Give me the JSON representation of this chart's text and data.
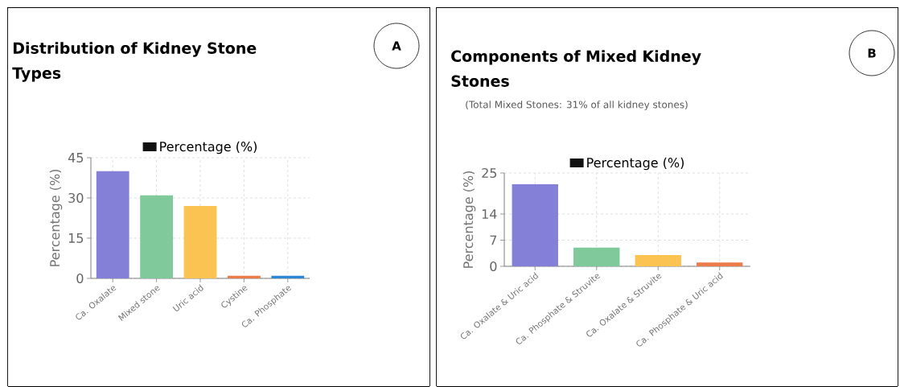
{
  "chart_data": [
    {
      "type": "bar",
      "title": "Distribution of Kidney Stone Types",
      "ylabel": "Percentage (%)",
      "categories": [
        "Ca. Oxalate",
        "Mixed stone",
        "Uric acid",
        "Cystine",
        "Ca. Phosphate"
      ],
      "series": [
        {
          "name": "Percentage (%)",
          "color": "#111111",
          "colors": [
            "#8480d8",
            "#7fc99a",
            "#fbc352",
            "#ec7d4a",
            "#2e86d6"
          ],
          "values": [
            40,
            31,
            27,
            1,
            1
          ]
        }
      ],
      "ylim": [
        0,
        45
      ],
      "yticks": [
        0,
        15,
        30,
        45
      ],
      "grid": true,
      "legend": "top",
      "annotations": [
        "A"
      ]
    },
    {
      "type": "bar",
      "title": "Components of Mixed Kidney Stones",
      "subtitle": "(Total Mixed Stones: 31% of all kidney stones)",
      "ylabel": "Percentage (%)",
      "categories": [
        "Ca. Oxalate & Uric acid",
        "Ca. Phosphate & Struvite",
        "Ca. Oxalate & Struvite",
        "Ca. Phosphate & Uric acid"
      ],
      "series": [
        {
          "name": "Percentage (%)",
          "color": "#111111",
          "colors": [
            "#8480d8",
            "#7fc99a",
            "#fbc352",
            "#ec7d4a"
          ],
          "values": [
            22,
            5,
            3,
            1
          ]
        }
      ],
      "ylim": [
        0,
        25
      ],
      "yticks": [
        0,
        7,
        14,
        25
      ],
      "grid": true,
      "legend": "top",
      "annotations": [
        "B"
      ]
    }
  ]
}
